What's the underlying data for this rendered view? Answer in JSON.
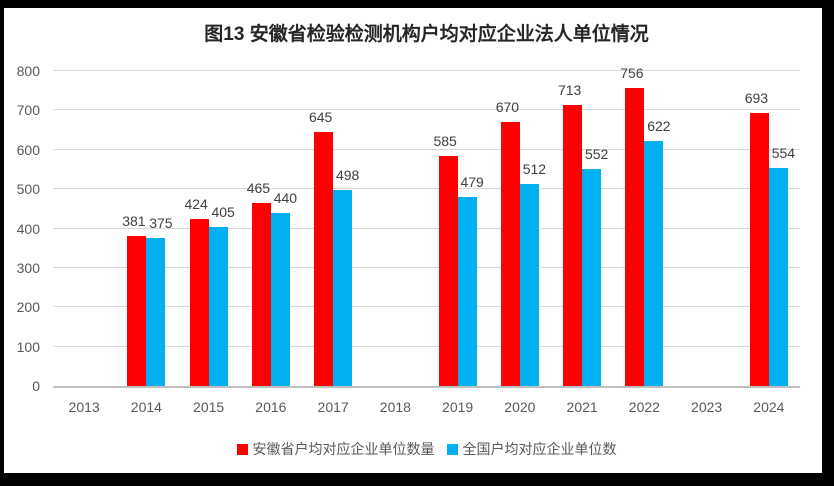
{
  "chart_data": {
    "type": "bar",
    "title": "图13 安徽省检验检测机构户均对应企业法人单位情况",
    "categories": [
      "2013",
      "2014",
      "2015",
      "2016",
      "2017",
      "2018",
      "2019",
      "2020",
      "2021",
      "2022",
      "2023",
      "2024"
    ],
    "series": [
      {
        "name": "安徽省户均对应企业单位数量",
        "color": "#FF0000",
        "values": [
          null,
          381,
          424,
          465,
          645,
          null,
          585,
          670,
          713,
          756,
          null,
          693
        ]
      },
      {
        "name": "全国户均对应企业单位数",
        "color": "#00B0F0",
        "values": [
          null,
          375,
          405,
          440,
          498,
          null,
          479,
          512,
          552,
          622,
          null,
          554
        ]
      }
    ],
    "xlabel": "",
    "ylabel": "",
    "ylim": [
      0,
      800
    ],
    "ytick_step": 100,
    "grid": true,
    "legend_position": "bottom"
  },
  "colors": {
    "frame": "#000000",
    "background": "#FFFFFF",
    "gridline": "#D9D9D9",
    "axis_line": "#BFBFBF",
    "tick_text": "#595959",
    "data_label_text": "#404040",
    "title_text": "#262626"
  }
}
